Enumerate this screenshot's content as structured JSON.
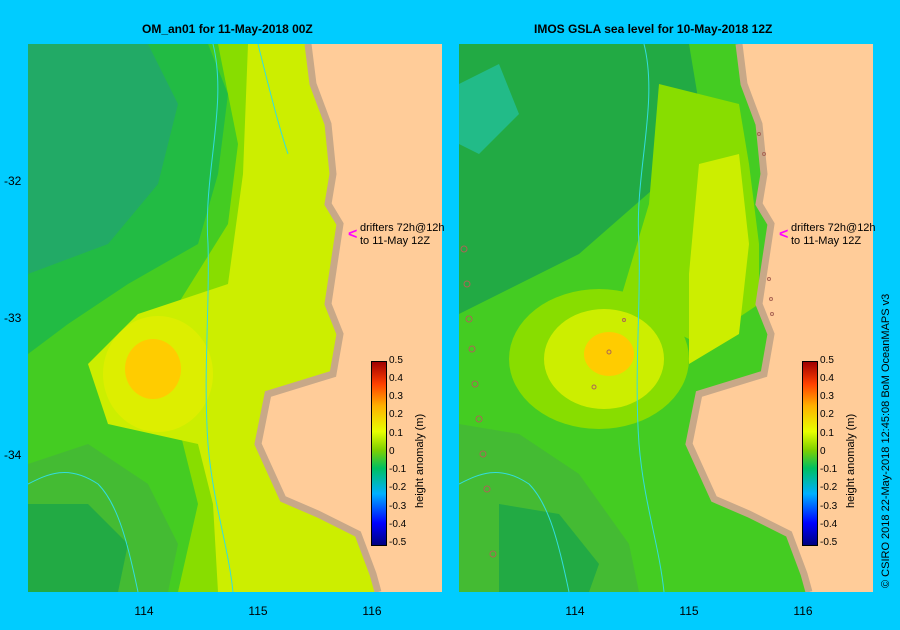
{
  "left_panel": {
    "title": "OM_an01  for 11-May-2018 00Z"
  },
  "right_panel": {
    "title": "IMOS GSLA sea level  for 10-May-2018 12Z"
  },
  "y_ticks": [
    "-32",
    "-33",
    "-34"
  ],
  "x_ticks": [
    "114",
    "115",
    "116"
  ],
  "annotation": {
    "line1": "drifters 72h@12h",
    "line2": "to 11-May 12Z",
    "arrow": "<"
  },
  "colorbar": {
    "label": "height anomaly (m)",
    "ticks": [
      "0.5",
      "0.4",
      "0.3",
      "0.2",
      "0.1",
      "0",
      "-0.1",
      "-0.2",
      "-0.3",
      "-0.4",
      "-0.5"
    ]
  },
  "credit": "© CSIRO 2018   22-May-2018 12:45:08 BoM OceanMAPS v3",
  "colors": {
    "background": "#00ccff",
    "land": "#ffcc99",
    "coast": "#c8a888",
    "contour": "#33dddd"
  }
}
